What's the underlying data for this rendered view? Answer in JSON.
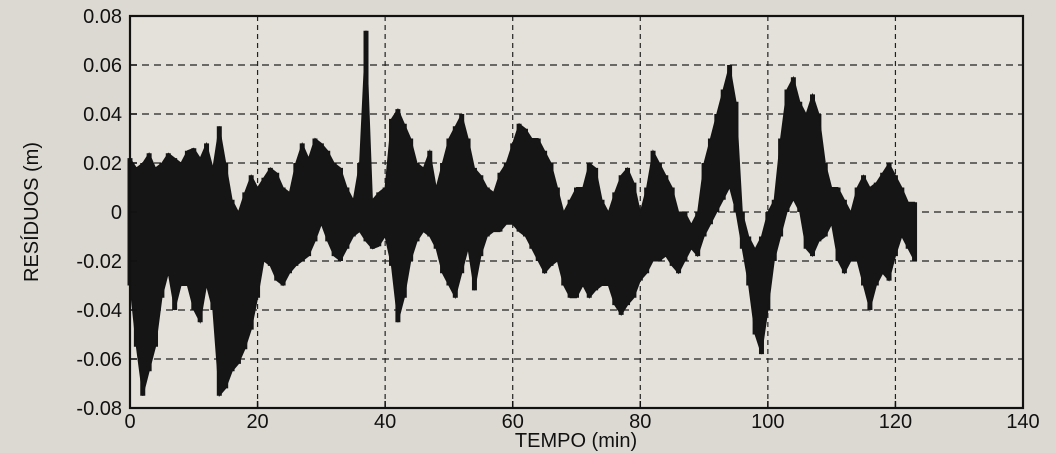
{
  "chart_data": {
    "type": "line",
    "title": "",
    "xlabel": "TEMPO (min)",
    "ylabel": "RESÍDUOS (m)",
    "xlim": [
      0,
      140
    ],
    "ylim": [
      -0.08,
      0.08
    ],
    "x_ticks": [
      0,
      20,
      40,
      60,
      80,
      100,
      120,
      140
    ],
    "x_tick_labels": [
      "0",
      "20",
      "40",
      "60",
      "80",
      "100",
      "120",
      "140"
    ],
    "y_ticks": [
      -0.08,
      -0.06,
      -0.04,
      -0.02,
      0,
      0.02,
      0.04,
      0.06,
      0.08
    ],
    "y_tick_labels": [
      "-0.08",
      "-0.06",
      "-0.04",
      "-0.02",
      "0",
      "0.02",
      "0.04",
      "0.06",
      "0.08"
    ],
    "grid": true,
    "grid_style": "dashed",
    "series_color": "#151515",
    "series": [
      {
        "x": [
          0,
          1,
          2,
          3,
          4,
          5,
          6,
          7,
          8,
          9,
          10,
          11,
          12,
          13,
          14,
          15,
          16,
          17,
          18,
          19,
          20,
          21,
          22,
          23,
          24,
          25,
          26,
          27,
          28,
          29,
          30,
          31,
          32,
          33,
          34,
          35,
          36,
          37,
          38,
          39,
          40,
          41,
          42,
          43,
          44,
          45,
          46,
          47,
          48,
          49,
          50,
          51,
          52,
          53,
          54,
          55,
          56,
          57,
          58,
          59,
          60,
          61,
          62,
          63,
          64,
          65,
          66,
          67,
          68,
          69,
          70,
          71,
          72,
          73,
          74,
          75,
          76,
          77,
          78,
          79,
          80,
          81,
          82,
          83,
          84,
          85,
          86,
          87,
          88,
          89,
          90,
          91,
          92,
          93,
          94,
          95,
          96,
          97,
          98,
          99,
          100,
          101,
          102,
          103,
          104,
          105,
          106,
          107,
          108,
          109,
          110,
          111,
          112,
          113,
          114,
          115,
          116,
          117,
          118,
          119,
          120,
          121,
          122,
          123
        ],
        "upper": [
          0.022,
          0.018,
          0.02,
          0.024,
          0.018,
          0.02,
          0.024,
          0.022,
          0.02,
          0.025,
          0.026,
          0.022,
          0.028,
          0.018,
          0.035,
          0.02,
          0.005,
          0.0,
          0.008,
          0.015,
          0.01,
          0.014,
          0.018,
          0.016,
          0.01,
          0.008,
          0.02,
          0.028,
          0.022,
          0.03,
          0.028,
          0.025,
          0.02,
          0.018,
          0.01,
          0.005,
          0.02,
          0.074,
          0.005,
          0.008,
          0.01,
          0.038,
          0.042,
          0.036,
          0.03,
          0.02,
          0.018,
          0.025,
          0.01,
          0.02,
          0.03,
          0.035,
          0.04,
          0.03,
          0.018,
          0.015,
          0.01,
          0.008,
          0.016,
          0.02,
          0.028,
          0.036,
          0.034,
          0.03,
          0.03,
          0.025,
          0.02,
          0.01,
          0.0,
          0.005,
          0.01,
          0.01,
          0.02,
          0.018,
          0.005,
          0.0,
          0.008,
          0.015,
          0.018,
          0.012,
          0.0,
          0.01,
          0.025,
          0.02,
          0.015,
          0.01,
          0.0,
          0.0,
          -0.005,
          0.0,
          0.02,
          0.03,
          0.04,
          0.05,
          0.06,
          0.045,
          0.0,
          -0.01,
          -0.015,
          -0.01,
          0.0,
          0.005,
          0.03,
          0.05,
          0.055,
          0.045,
          0.04,
          0.048,
          0.04,
          0.02,
          0.01,
          0.01,
          0.005,
          0.0,
          0.01,
          0.015,
          0.01,
          0.012,
          0.016,
          0.02,
          0.015,
          0.01,
          0.004,
          0.004
        ],
        "lower": [
          -0.03,
          -0.055,
          -0.075,
          -0.065,
          -0.055,
          -0.035,
          -0.025,
          -0.04,
          -0.03,
          -0.03,
          -0.04,
          -0.045,
          -0.03,
          -0.04,
          -0.075,
          -0.072,
          -0.065,
          -0.062,
          -0.056,
          -0.048,
          -0.035,
          -0.02,
          -0.022,
          -0.028,
          -0.03,
          -0.025,
          -0.022,
          -0.02,
          -0.018,
          -0.012,
          -0.005,
          -0.012,
          -0.018,
          -0.02,
          -0.015,
          -0.01,
          -0.008,
          -0.012,
          -0.015,
          -0.014,
          -0.01,
          -0.022,
          -0.045,
          -0.035,
          -0.02,
          -0.012,
          -0.008,
          -0.01,
          -0.015,
          -0.025,
          -0.03,
          -0.035,
          -0.025,
          -0.015,
          -0.032,
          -0.018,
          -0.01,
          -0.008,
          -0.008,
          -0.005,
          -0.005,
          -0.008,
          -0.01,
          -0.015,
          -0.02,
          -0.025,
          -0.022,
          -0.02,
          -0.03,
          -0.035,
          -0.035,
          -0.03,
          -0.035,
          -0.032,
          -0.03,
          -0.03,
          -0.038,
          -0.042,
          -0.038,
          -0.035,
          -0.028,
          -0.025,
          -0.02,
          -0.02,
          -0.018,
          -0.022,
          -0.025,
          -0.02,
          -0.015,
          -0.018,
          -0.01,
          -0.005,
          0.0,
          0.005,
          0.01,
          0.0,
          -0.015,
          -0.03,
          -0.05,
          -0.058,
          -0.04,
          -0.02,
          -0.01,
          0.0,
          0.005,
          0.0,
          -0.015,
          -0.018,
          -0.012,
          -0.01,
          -0.005,
          -0.02,
          -0.025,
          -0.02,
          -0.02,
          -0.03,
          -0.04,
          -0.03,
          -0.025,
          -0.028,
          -0.018,
          -0.01,
          -0.015,
          -0.02
        ]
      }
    ]
  }
}
